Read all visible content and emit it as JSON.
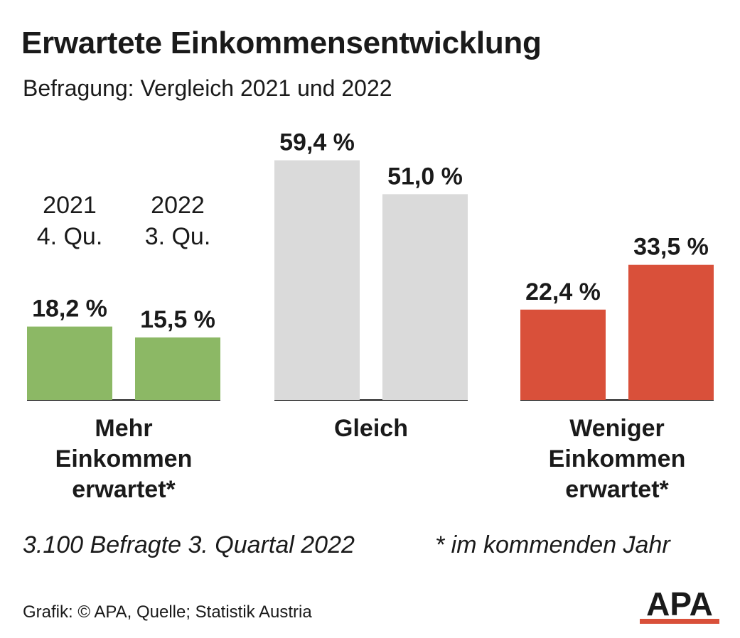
{
  "title": "Erwartete Einkommensentwicklung",
  "subtitle": "Befragung: Vergleich 2021 und 2022",
  "chart_data": {
    "type": "bar",
    "categories": [
      "Mehr Einkommen erwartet*",
      "Gleich",
      "Weniger Einkommen erwartet*"
    ],
    "category_lines": [
      [
        "Mehr",
        "Einkommen",
        "erwartet*"
      ],
      [
        "Gleich"
      ],
      [
        "Weniger",
        "Einkommen",
        "erwartet*"
      ]
    ],
    "series": [
      {
        "name": "2021 4. Qu.",
        "name_lines": [
          "2021",
          "4. Qu."
        ],
        "values": [
          18.2,
          59.4,
          22.4
        ]
      },
      {
        "name": "2022 3. Qu.",
        "name_lines": [
          "2022",
          "3. Qu."
        ],
        "values": [
          15.5,
          51.0,
          33.5
        ]
      }
    ],
    "value_labels": [
      [
        "18,2 %",
        "59,4 %",
        "22,4 %"
      ],
      [
        "15,5 %",
        "51,0 %",
        "33,5 %"
      ]
    ],
    "category_colors": [
      "#8cb865",
      "#dadada",
      "#d9503a"
    ],
    "unit": "%",
    "grid": false,
    "legend": "series labels above the first category group",
    "ylim": [
      0,
      60
    ]
  },
  "footnote_left": "3.100 Befragte 3. Quartal 2022",
  "footnote_right": "* im kommenden Jahr",
  "credit": "Grafik: © APA, Quelle; Statistik Austria",
  "logo_text": "APA"
}
